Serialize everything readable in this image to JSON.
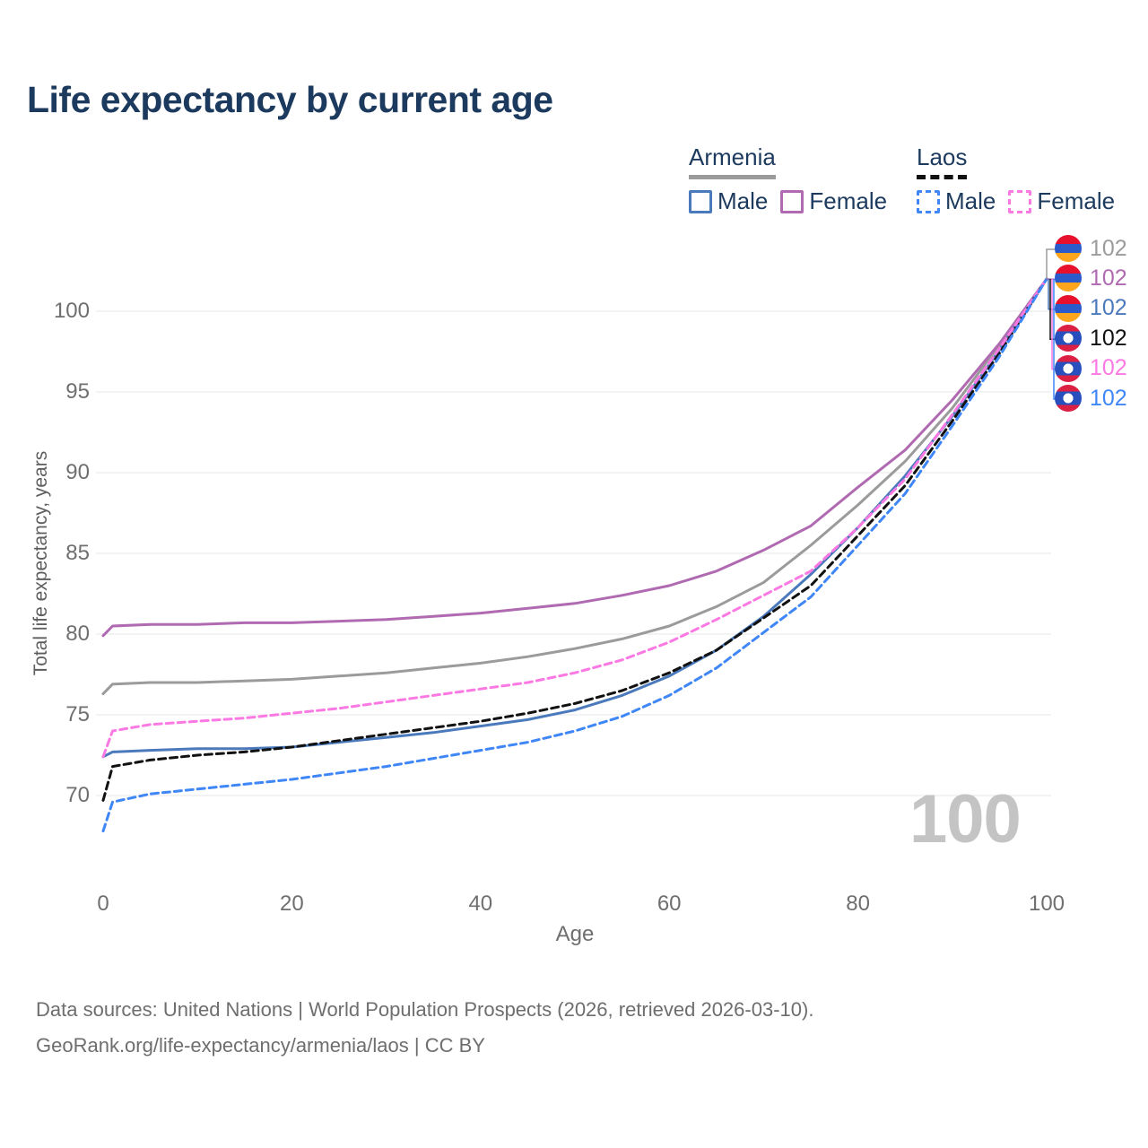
{
  "title": "Life expectancy by current age",
  "legend": {
    "armenia": {
      "label": "Armenia",
      "male": "Male",
      "female": "Female"
    },
    "laos": {
      "label": "Laos",
      "male": "Male",
      "female": "Female"
    }
  },
  "hover_age_indicator": "100",
  "footer": {
    "line1": "Data sources: United Nations | World Population Prospects (2026, retrieved 2026-03-10).",
    "line2": "GeoRank.org/life-expectancy/armenia/laos | CC BY"
  },
  "colors": {
    "title_text": "#1c3a5e",
    "armenia_combined": "#9b9b9b",
    "armenia_male": "#4b7abc",
    "armenia_female": "#b06ab1",
    "laos_combined": "#111111",
    "laos_male": "#3f86f7",
    "laos_female": "#fb79e3",
    "gridline": "#ececec",
    "tick_text": "#6f6f6f",
    "watermark_text": "#c4c4c4"
  },
  "chart_data": {
    "type": "line",
    "title": "Life expectancy by current age",
    "xlabel": "Age",
    "ylabel": "Total life expectancy, years",
    "xlim": [
      0,
      100
    ],
    "ylim": [
      66,
      103
    ],
    "x_ticks": [
      0,
      20,
      40,
      60,
      80,
      100
    ],
    "y_ticks": [
      70,
      75,
      80,
      85,
      90,
      95,
      100
    ],
    "grid": "horizontal",
    "legend_position": "top-right",
    "x": [
      0,
      1,
      5,
      10,
      15,
      20,
      25,
      30,
      35,
      40,
      45,
      50,
      55,
      60,
      65,
      70,
      75,
      80,
      85,
      90,
      95,
      100
    ],
    "series": [
      {
        "name": "Armenia",
        "flag": "armenia",
        "color": "#9b9b9b",
        "dash": false,
        "end_label": "102",
        "values": [
          76.3,
          76.9,
          77.0,
          77.0,
          77.1,
          77.2,
          77.4,
          77.6,
          77.9,
          78.2,
          78.6,
          79.1,
          79.7,
          80.5,
          81.7,
          83.2,
          85.5,
          88.0,
          90.7,
          94.0,
          97.9,
          102
        ]
      },
      {
        "name": "Armenia Female",
        "flag": "armenia",
        "color": "#b06ab1",
        "dash": false,
        "end_label": "102",
        "values": [
          79.9,
          80.5,
          80.6,
          80.6,
          80.7,
          80.7,
          80.8,
          80.9,
          81.1,
          81.3,
          81.6,
          81.9,
          82.4,
          83.0,
          83.9,
          85.2,
          86.7,
          89.1,
          91.4,
          94.5,
          98.0,
          102
        ]
      },
      {
        "name": "Armenia Male",
        "flag": "armenia",
        "color": "#4b7abc",
        "dash": false,
        "end_label": "102",
        "values": [
          72.4,
          72.7,
          72.8,
          72.9,
          72.9,
          73.0,
          73.3,
          73.6,
          73.9,
          74.3,
          74.7,
          75.3,
          76.2,
          77.4,
          79.0,
          81.1,
          83.7,
          86.6,
          89.8,
          93.5,
          97.6,
          102
        ]
      },
      {
        "name": "Laos",
        "flag": "laos",
        "color": "#111111",
        "dash": true,
        "end_label": "102",
        "values": [
          69.7,
          71.8,
          72.2,
          72.5,
          72.7,
          73.0,
          73.4,
          73.8,
          74.2,
          74.6,
          75.1,
          75.7,
          76.5,
          77.6,
          79.0,
          81.0,
          83.0,
          86.1,
          89.2,
          93.2,
          97.4,
          102
        ]
      },
      {
        "name": "Laos Female",
        "flag": "laos",
        "color": "#fb79e3",
        "dash": true,
        "end_label": "102",
        "values": [
          72.4,
          74.0,
          74.4,
          74.6,
          74.8,
          75.1,
          75.4,
          75.8,
          76.2,
          76.6,
          77.0,
          77.6,
          78.4,
          79.5,
          80.9,
          82.4,
          83.9,
          86.6,
          89.6,
          93.6,
          97.7,
          102
        ]
      },
      {
        "name": "Laos Male",
        "flag": "laos",
        "color": "#3f86f7",
        "dash": true,
        "end_label": "102",
        "values": [
          67.8,
          69.6,
          70.1,
          70.4,
          70.7,
          71.0,
          71.4,
          71.8,
          72.3,
          72.8,
          73.3,
          74.0,
          74.9,
          76.2,
          77.9,
          80.1,
          82.3,
          85.5,
          88.7,
          92.9,
          97.2,
          102
        ]
      }
    ]
  }
}
